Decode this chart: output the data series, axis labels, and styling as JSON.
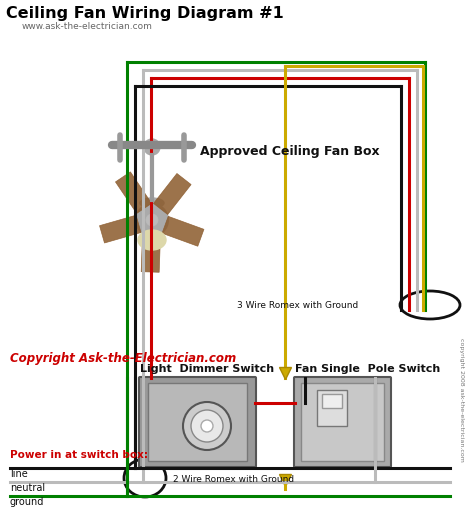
{
  "title": "Ceiling Fan Wiring Diagram #1",
  "subtitle": "www.ask-the-electrician.com",
  "copyright": "Copyright Ask-the-Electrician.com",
  "label_fan_box": "Approved Ceiling Fan Box",
  "label_3wire": "3 Wire Romex with Ground",
  "label_2wire": "2 Wire Romex with Ground",
  "label_dimmer": "Light  Dimmer Switch",
  "label_fan_switch": "Fan Single  Pole Switch",
  "label_power": "Power in at switch box:",
  "label_line": "line",
  "label_neutral": "neutral",
  "label_ground": "ground",
  "label_copyright_side": "copyright 2008 ask-the-electrician.com",
  "bg_color": "#ffffff",
  "title_color": "#000000",
  "subtitle_color": "#666666",
  "copyright_color": "#cc0000",
  "green": "#008000",
  "red": "#cc0000",
  "black": "#111111",
  "white_wire": "#bbbbbb",
  "yellow": "#ccaa00"
}
